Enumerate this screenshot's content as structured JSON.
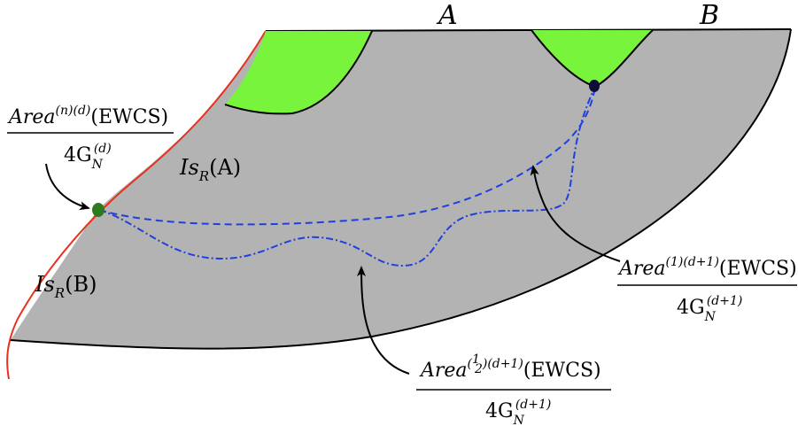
{
  "labels": {
    "region_a": "A",
    "region_b": "B",
    "island_a": {
      "base": "Is",
      "sub": "R",
      "arg": "(A)"
    },
    "island_b": {
      "base": "Is",
      "sub": "R",
      "arg": "(B)"
    }
  },
  "formulas": {
    "brane": {
      "num": "Area",
      "num_sup": "(n)(d)",
      "num_arg": "(EWCS)",
      "den": "4G",
      "den_sub": "N",
      "den_sup": "(d)"
    },
    "bulk_full": {
      "num": "Area",
      "num_sup": "(1)(d+1)",
      "num_arg": "(EWCS)",
      "den": "4G",
      "den_sub": "N",
      "den_sup": "(d+1)"
    },
    "bulk_half": {
      "num": "Area",
      "num_sup_open": "(",
      "num_sup_frac_num": "1",
      "num_sup_frac_den": "2",
      "num_sup_close": ")(d+1)",
      "num_arg": "(EWCS)",
      "den": "4G",
      "den_sub": "N",
      "den_sup": "(d+1)"
    }
  },
  "colors": {
    "bulk": "#b3b3b3",
    "entanglement_wedge": "#77f43b",
    "brane": "#e8301e",
    "ewcs_curve": "#1f3fe0",
    "brane_point": "#2f7a1f",
    "boundary_point": "#0d0d3a"
  }
}
